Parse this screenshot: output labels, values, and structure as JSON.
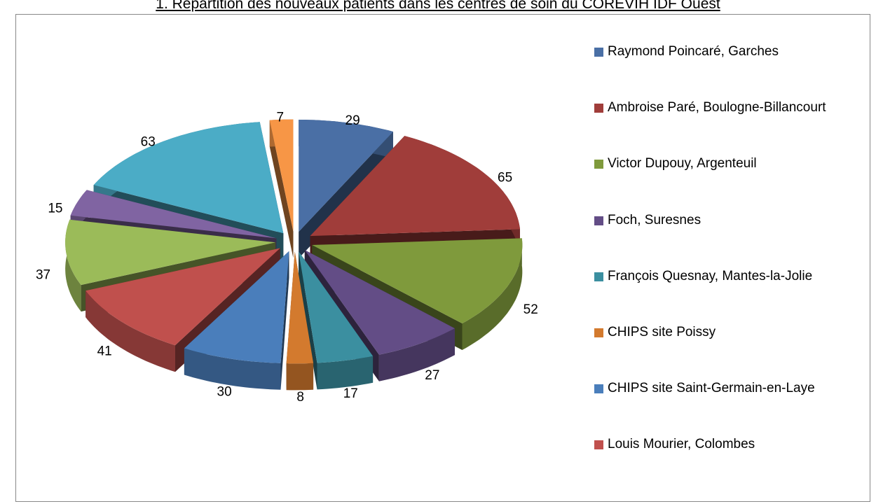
{
  "chart_data": {
    "type": "pie3d",
    "title": "1.  Répartition des nouveaux patients dans les centres de soin du COREVIH IDF Ouest",
    "categories": [
      "Raymond Poincaré, Garches",
      "Ambroise Paré, Boulogne-Billancourt",
      "Victor Dupouy, Argenteuil",
      "Foch, Suresnes",
      "François Quesnay, Mantes-la-Jolie",
      "CHIPS site Poissy",
      "CHIPS site Saint-Germain-en-Laye",
      "Louis Mourier, Colombes",
      null,
      null,
      null,
      null
    ],
    "values": [
      29,
      65,
      52,
      27,
      17,
      8,
      30,
      41,
      37,
      15,
      63,
      7
    ],
    "colors": [
      "#4a6fa5",
      "#a03d3a",
      "#7f9a3c",
      "#634d86",
      "#3b8fa0",
      "#d37a2e",
      "#4a7ebb",
      "#c0504d",
      "#9bbb59",
      "#8064a2",
      "#4bacc6",
      "#f79646"
    ],
    "legend": "right"
  }
}
